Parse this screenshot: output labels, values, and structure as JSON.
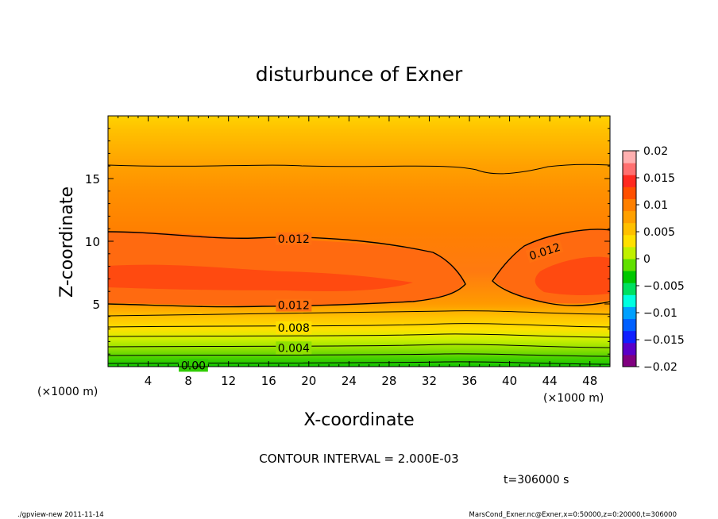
{
  "chart_data": {
    "type": "heatmap",
    "title": "disturbunce of Exner",
    "xlabel": "X-coordinate",
    "ylabel": "Z-coordinate",
    "x_unit": "(×1000 m)",
    "x_unit_right": "(×1000 m)",
    "xlim": [
      0,
      50
    ],
    "ylim": [
      0,
      20
    ],
    "x_ticks": [
      4,
      8,
      12,
      16,
      20,
      24,
      28,
      32,
      36,
      40,
      44,
      48
    ],
    "y_ticks": [
      5,
      10,
      15
    ],
    "colorbar": {
      "ticks": [
        "0.02",
        "0.015",
        "0.01",
        "0.005",
        "0",
        "−0.005",
        "−0.01",
        "−0.015",
        "−0.02"
      ],
      "range": [
        -0.02,
        0.02
      ],
      "colors": [
        "#800080",
        "#5a00c8",
        "#1020ff",
        "#0060ff",
        "#00a0ff",
        "#00ffe0",
        "#00e060",
        "#00c800",
        "#60e000",
        "#c0f000",
        "#ffe000",
        "#ffc000",
        "#ffa000",
        "#ff8000",
        "#ff5000",
        "#ff2a20",
        "#ff7070",
        "#ffb0b0"
      ]
    },
    "contour_labels": [
      {
        "text": "0.012",
        "x": 18.5,
        "z": 10.2
      },
      {
        "text": "0.012",
        "x": 43.5,
        "z": 9.2
      },
      {
        "text": "0.012",
        "x": 18.5,
        "z": 4.9
      },
      {
        "text": "0.008",
        "x": 18.5,
        "z": 3.1
      },
      {
        "text": "0.004",
        "x": 18.5,
        "z": 1.5
      },
      {
        "text": "0.00",
        "x": 8.5,
        "z": 0.1
      }
    ],
    "contour_interval_text": "CONTOUR INTERVAL = 2.000E-03",
    "time_text": "t=306000 s"
  },
  "footer": {
    "left": "./gpview-new   2011-11-14",
    "right": "MarsCond_Exner.nc@Exner,x=0:50000,z=0:20000,t=306000"
  }
}
